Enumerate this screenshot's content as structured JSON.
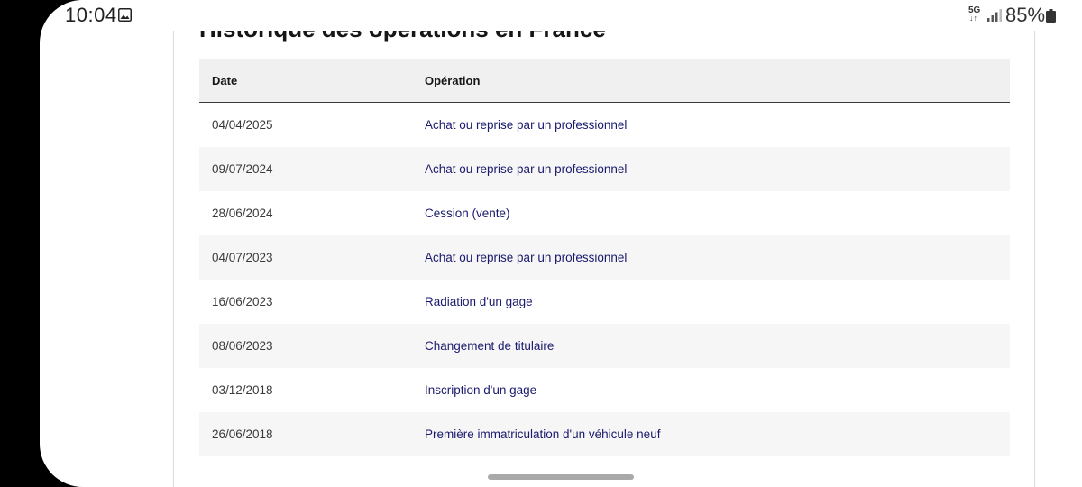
{
  "status_bar": {
    "time": "10:04",
    "network": "5G",
    "network_arrows": "↓↑",
    "battery": "85%"
  },
  "section": {
    "title": "Historique des opérations en France"
  },
  "table": {
    "headers": {
      "date": "Date",
      "operation": "Opération"
    },
    "rows": [
      {
        "date": "04/04/2025",
        "operation": "Achat ou reprise par un professionnel"
      },
      {
        "date": "09/07/2024",
        "operation": "Achat ou reprise par un professionnel"
      },
      {
        "date": "28/06/2024",
        "operation": "Cession (vente)"
      },
      {
        "date": "04/07/2023",
        "operation": "Achat ou reprise par un professionnel"
      },
      {
        "date": "16/06/2023",
        "operation": "Radiation d'un gage"
      },
      {
        "date": "08/06/2023",
        "operation": "Changement de titulaire"
      },
      {
        "date": "03/12/2018",
        "operation": "Inscription d'un gage"
      },
      {
        "date": "26/06/2018",
        "operation": "Première immatriculation d'un véhicule neuf"
      }
    ]
  },
  "icons": {
    "gallery": "gallery-icon",
    "signal": "signal-icon",
    "battery": "battery-icon"
  },
  "colors": {
    "operation_text": "#1a1a6e",
    "header_bg": "#f0f0f0",
    "stripe_bg": "#f6f6f6"
  }
}
